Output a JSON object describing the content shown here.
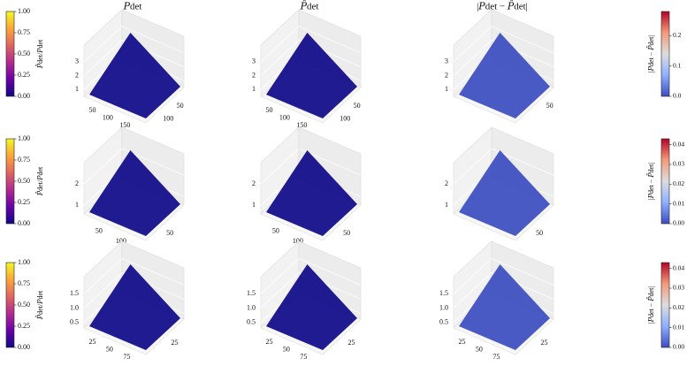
{
  "chart_data": [
    {
      "type": "scatter3d",
      "title": "𝑃det",
      "xlim": [
        0,
        180
      ],
      "xticks": [
        50,
        100,
        150
      ],
      "ylim": [
        0,
        140
      ],
      "yticks": [
        50,
        100
      ],
      "zlim": [
        0.5,
        4.2
      ],
      "zticks": [
        1,
        2,
        3
      ],
      "colors": [
        "#0d0887",
        "#6a00a8",
        "#b12a90",
        "#e16462",
        "#fca636",
        "#f0f921"
      ]
    },
    {
      "type": "scatter3d",
      "title": "𝑃̂det",
      "xlim": [
        0,
        180
      ],
      "xticks": [
        50,
        100,
        150
      ],
      "ylim": [
        0,
        140
      ],
      "yticks": [
        50,
        100
      ],
      "zlim": [
        0.5,
        4.2
      ],
      "zticks": [
        1,
        2,
        3
      ],
      "colors": [
        "#0d0887",
        "#6a00a8",
        "#b12a90",
        "#e16462",
        "#fca636",
        "#f0f921"
      ]
    },
    {
      "type": "scatter3d",
      "title": "|𝑃det − 𝑃̂det|",
      "xlim": [
        0,
        180
      ],
      "ylim": [
        0,
        140
      ],
      "yticks": [
        50
      ],
      "zlim": [
        0.5,
        4.2
      ],
      "zticks": [
        1,
        2,
        3
      ],
      "colors": [
        "#3b4cc0",
        "#5a78e4",
        "#8db0fe"
      ]
    },
    {
      "type": "scatter3d",
      "xlim": [
        0,
        130
      ],
      "xticks": [
        50,
        100
      ],
      "ylim": [
        0,
        80
      ],
      "yticks": [
        50
      ],
      "zlim": [
        0.6,
        3.0
      ],
      "zticks": [
        1,
        2
      ],
      "colors": [
        "#0d0887",
        "#6a00a8",
        "#b12a90",
        "#e16462",
        "#fca636",
        "#f0f921"
      ]
    },
    {
      "type": "scatter3d",
      "xlim": [
        0,
        130
      ],
      "xticks": [
        50,
        100
      ],
      "ylim": [
        0,
        80
      ],
      "yticks": [
        50
      ],
      "zlim": [
        0.6,
        3.0
      ],
      "zticks": [
        1,
        2
      ],
      "colors": [
        "#0d0887",
        "#6a00a8",
        "#b12a90",
        "#e16462",
        "#fca636",
        "#f0f921"
      ]
    },
    {
      "type": "scatter3d",
      "xlim": [
        0,
        130
      ],
      "ylim": [
        0,
        80
      ],
      "yticks": [
        50
      ],
      "zlim": [
        0.6,
        3.0
      ],
      "zticks": [
        1,
        2
      ],
      "colors": [
        "#3b4cc0",
        "#5a78e4",
        "#a9c3f5"
      ]
    },
    {
      "type": "scatter3d",
      "xlim": [
        0,
        90
      ],
      "xticks": [
        25,
        50,
        75
      ],
      "ylim": [
        0,
        50
      ],
      "yticks": [
        25
      ],
      "zlim": [
        0.3,
        2.1
      ],
      "zticks": [
        0.5,
        {
          "value": 1,
          "label": "1.0"
        },
        1.5
      ],
      "colors": [
        "#0d0887",
        "#6a00a8",
        "#b12a90",
        "#e16462",
        "#fca636",
        "#f0f921"
      ]
    },
    {
      "type": "scatter3d",
      "xlim": [
        0,
        90
      ],
      "xticks": [
        25,
        50,
        75
      ],
      "ylim": [
        0,
        50
      ],
      "yticks": [
        25
      ],
      "zlim": [
        0.3,
        2.1
      ],
      "zticks": [
        0.5,
        {
          "value": 1,
          "label": "1.0"
        },
        1.5
      ],
      "colors": [
        "#0d0887",
        "#6a00a8",
        "#b12a90",
        "#e16462",
        "#fca636",
        "#f0f921"
      ]
    },
    {
      "type": "scatter3d",
      "xlim": [
        0,
        90
      ],
      "xticks": [
        25,
        50,
        75
      ],
      "ylim": [
        0,
        50
      ],
      "yticks": [
        25
      ],
      "zlim": [
        0.3,
        2.1
      ],
      "zticks": [
        0.5,
        {
          "value": 1,
          "label": "1.0"
        },
        1.5
      ],
      "colors": [
        "#3b4cc0",
        "#6b8ef0",
        "#b7cff9"
      ]
    },
    {
      "type": "colorbar",
      "position": "left",
      "label": "𝑃̂det/𝑃det",
      "ylim": [
        0,
        1
      ],
      "yticks": [
        {
          "value": 0,
          "label": "0.00"
        },
        0.25,
        {
          "value": 0.5,
          "label": "0.50"
        },
        0.75,
        {
          "value": 1,
          "label": "1.00"
        }
      ],
      "colors": [
        "#0d0887",
        "#6a00a8",
        "#b12a90",
        "#e16462",
        "#fca636",
        "#f0f921"
      ]
    },
    {
      "type": "colorbar",
      "position": "right",
      "label": "|𝑃det − 𝑃̂det|",
      "ylim": [
        0,
        0.28
      ],
      "yticks": [
        {
          "value": 0,
          "label": "0.0"
        },
        0.1,
        0.2
      ],
      "colors": [
        "#3b4cc0",
        "#8db0fe",
        "#dddddd",
        "#f49a7b",
        "#b40426"
      ]
    },
    {
      "type": "colorbar",
      "position": "left",
      "label": "𝑃̂det/𝑃det",
      "ylim": [
        0,
        1
      ],
      "yticks": [
        {
          "value": 0,
          "label": "0.00"
        },
        0.25,
        {
          "value": 0.5,
          "label": "0.50"
        },
        0.75,
        {
          "value": 1,
          "label": "1.00"
        }
      ],
      "colors": [
        "#0d0887",
        "#6a00a8",
        "#b12a90",
        "#e16462",
        "#fca636",
        "#f0f921"
      ]
    },
    {
      "type": "colorbar",
      "position": "right",
      "label": "|𝑃det − 𝑃̂det|",
      "ylim": [
        0,
        0.043
      ],
      "yticks": [
        {
          "value": 0,
          "label": "0.00"
        },
        {
          "value": 0.01,
          "label": "0.01"
        },
        {
          "value": 0.02,
          "label": "0.02"
        },
        {
          "value": 0.03,
          "label": "0.03"
        },
        {
          "value": 0.04,
          "label": "0.04"
        }
      ],
      "colors": [
        "#3b4cc0",
        "#8db0fe",
        "#dddddd",
        "#f49a7b",
        "#b40426"
      ]
    },
    {
      "type": "colorbar",
      "position": "left",
      "label": "𝑃̂det/𝑃det",
      "ylim": [
        0,
        1
      ],
      "yticks": [
        {
          "value": 0,
          "label": "0.00"
        },
        0.25,
        {
          "value": 0.5,
          "label": "0.50"
        },
        0.75,
        {
          "value": 1,
          "label": "1.00"
        }
      ],
      "colors": [
        "#0d0887",
        "#6a00a8",
        "#b12a90",
        "#e16462",
        "#fca636",
        "#f0f921"
      ]
    },
    {
      "type": "colorbar",
      "position": "right",
      "label": "|𝑃det − 𝑃̂det|",
      "ylim": [
        0,
        0.043
      ],
      "yticks": [
        {
          "value": 0,
          "label": "0.00"
        },
        {
          "value": 0.01,
          "label": "0.01"
        },
        {
          "value": 0.02,
          "label": "0.02"
        },
        {
          "value": 0.03,
          "label": "0.03"
        },
        {
          "value": 0.04,
          "label": "0.04"
        }
      ],
      "colors": [
        "#3b4cc0",
        "#8db0fe",
        "#dddddd",
        "#f49a7b",
        "#b40426"
      ]
    }
  ]
}
